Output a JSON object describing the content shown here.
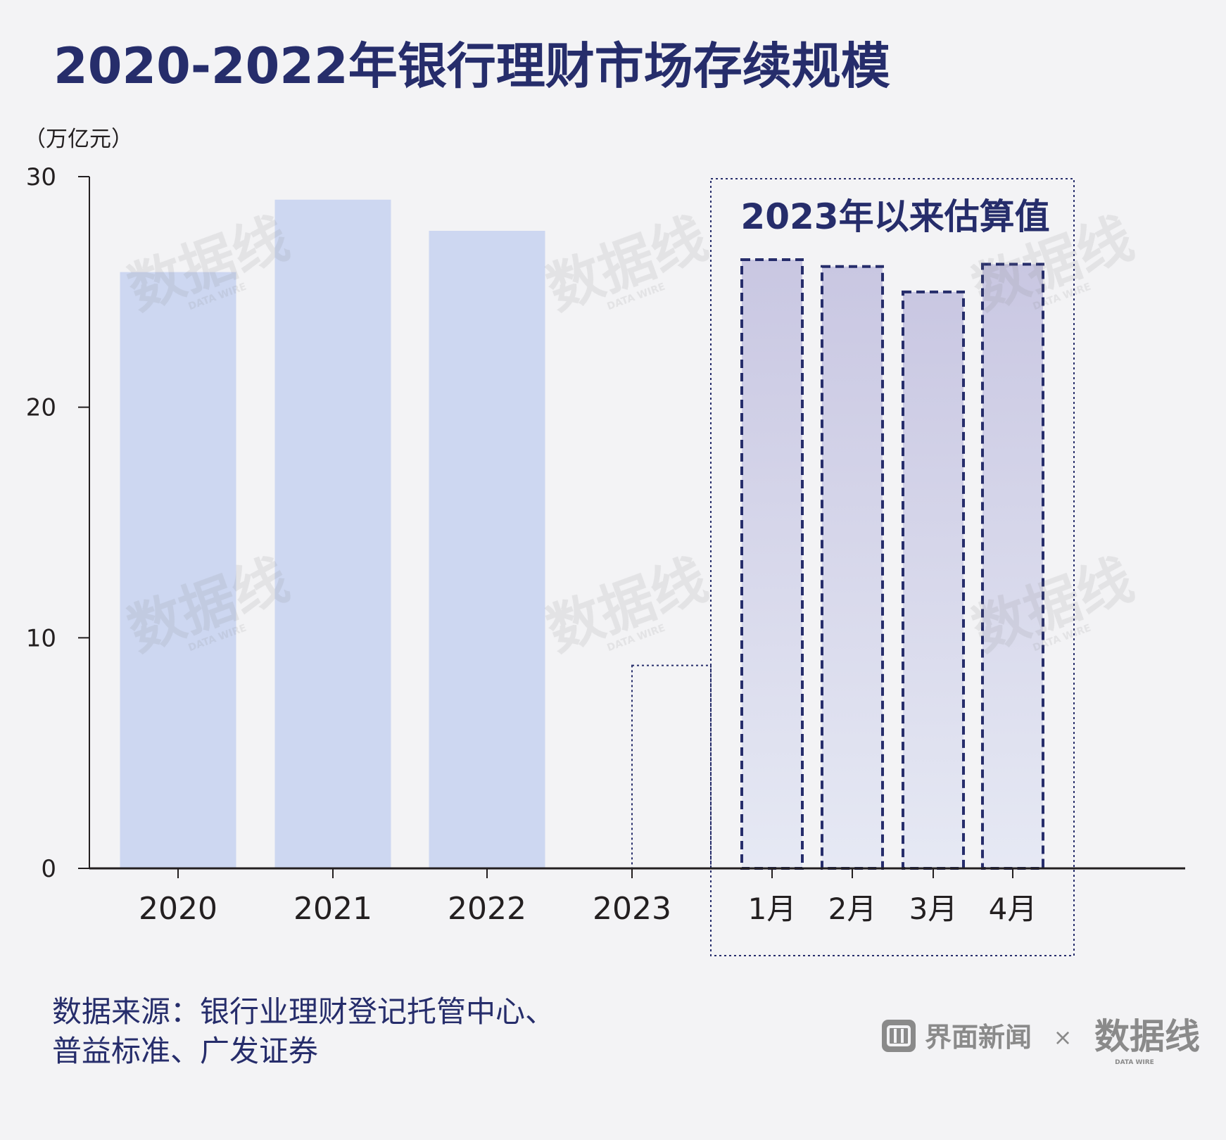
{
  "chart_data": {
    "type": "bar",
    "title": "2020-2022年银行理财市场存续规模",
    "unit_label": "（万亿元）",
    "ylim": [
      0,
      30
    ],
    "yticks": [
      0,
      10,
      20,
      30
    ],
    "grid": false,
    "categories": [
      "2020",
      "2021",
      "2022",
      "2023"
    ],
    "values": [
      25.86,
      29.0,
      27.65,
      8.8
    ],
    "estimate_group": {
      "label": "2023年以来估算值",
      "categories": [
        "1月",
        "2月",
        "3月",
        "4月"
      ],
      "values": [
        26.4,
        26.1,
        25.0,
        26.2
      ]
    }
  },
  "source": {
    "line1": "数据来源：银行业理财登记托管中心、",
    "line2": "普益标准、广发证券"
  },
  "branding": {
    "brand_name": "界面新闻",
    "separator": "×",
    "watermark": "数据线",
    "watermark_sub": "DATA WIRE"
  },
  "colors": {
    "title": "#262d6b",
    "bar_fill": "#cdd7f1",
    "estimate_fill_top": "#c9c7e2",
    "estimate_fill_bottom": "#e6e9f4",
    "estimate_border": "#262d6b",
    "axis": "#231f20",
    "text": "#231f20",
    "source_text": "#262d6b",
    "brand_gray": "#8a8a8a"
  }
}
